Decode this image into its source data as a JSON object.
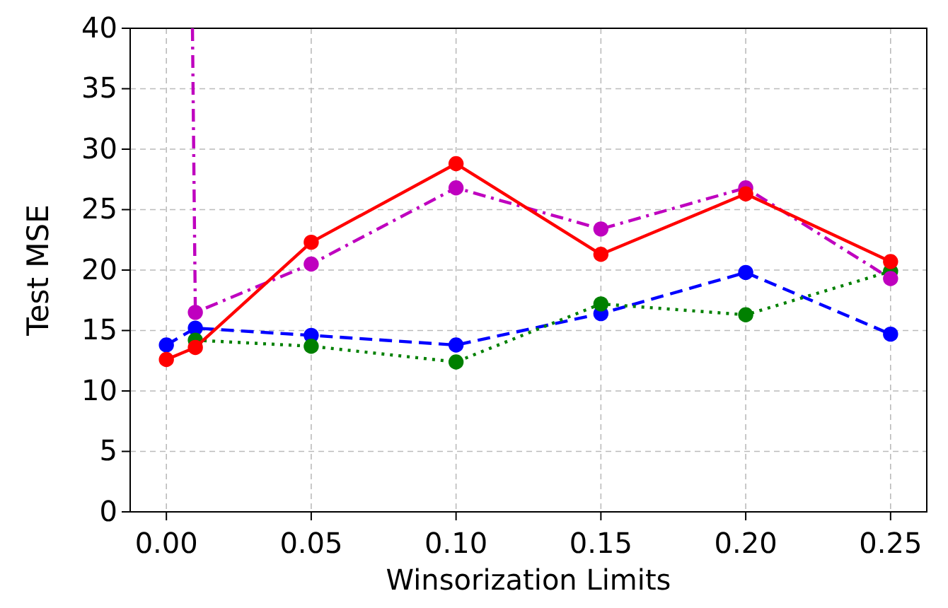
{
  "chart_data": {
    "type": "line",
    "xlabel": "Winsorization Limits",
    "ylabel": "Test MSE",
    "x": [
      0,
      0.01,
      0.05,
      0.1,
      0.15,
      0.2,
      0.25
    ],
    "xlim": [
      -0.0125,
      0.2625
    ],
    "xticks": [
      {
        "value": 0,
        "label": "0.00"
      },
      {
        "value": 0.05,
        "label": "0.05"
      },
      {
        "value": 0.1,
        "label": "0.10"
      },
      {
        "value": 0.15,
        "label": "0.15"
      },
      {
        "value": 0.2,
        "label": "0.20"
      },
      {
        "value": 0.25,
        "label": "0.25"
      }
    ],
    "ylim": [
      0,
      40
    ],
    "yticks": [
      0,
      5,
      10,
      15,
      20,
      25,
      30,
      35,
      40
    ],
    "grid": true,
    "marker": "circle",
    "series": [
      {
        "color": "#0000ff",
        "line_style": "dashed",
        "values": [
          13.8,
          15.2,
          14.6,
          13.8,
          16.4,
          19.8,
          14.7
        ]
      },
      {
        "color": "#008000",
        "line_style": "dotted",
        "x": [
          0.01,
          0.05,
          0.1,
          0.15,
          0.2,
          0.25
        ],
        "values": [
          14.2,
          13.7,
          12.4,
          17.2,
          16.3,
          19.9
        ]
      },
      {
        "color": "#bf00bf",
        "line_style": "dashdot",
        "x": [
          0.009,
          0.01,
          0.05,
          0.1,
          0.15,
          0.2,
          0.25
        ],
        "values": [
          40,
          16.5,
          20.5,
          26.8,
          23.4,
          26.8,
          19.3
        ]
      },
      {
        "color": "#ff0000",
        "line_style": "solid",
        "values": [
          12.6,
          13.6,
          22.3,
          28.8,
          21.3,
          26.3,
          20.7
        ]
      }
    ]
  }
}
